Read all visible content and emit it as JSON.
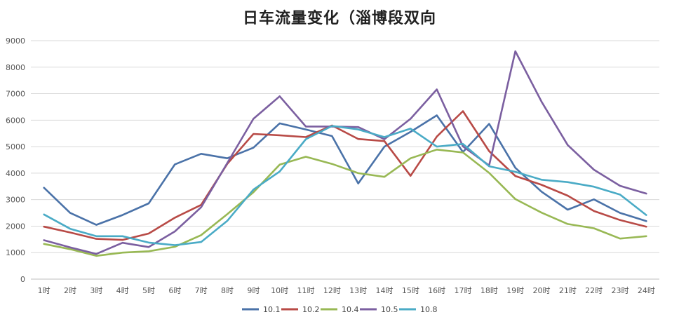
{
  "chart_data": {
    "type": "line",
    "title": "日车流量变化（淄博段双向",
    "categories": [
      "1时",
      "2时",
      "3时",
      "4时",
      "5时",
      "6时",
      "7时",
      "8时",
      "9时",
      "10时",
      "11时",
      "12时",
      "13时",
      "14时",
      "15时",
      "16时",
      "17时",
      "18时",
      "19时",
      "20时",
      "21时",
      "22时",
      "23时",
      "24时"
    ],
    "ylim": [
      0,
      9000
    ],
    "yticks": [
      0,
      1000,
      2000,
      3000,
      4000,
      5000,
      6000,
      7000,
      8000,
      9000
    ],
    "grid": true,
    "legend": "bottom",
    "series": [
      {
        "name": "10.1",
        "color": "#4a72a8",
        "values": [
          3450,
          2500,
          2050,
          2420,
          2860,
          4330,
          4730,
          4560,
          4960,
          5880,
          5650,
          5400,
          3610,
          5000,
          5560,
          6180,
          4800,
          5860,
          4200,
          3300,
          2620,
          3010,
          2500,
          2190
        ]
      },
      {
        "name": "10.2",
        "color": "#b84a46",
        "values": [
          1980,
          1760,
          1520,
          1480,
          1720,
          2320,
          2800,
          4350,
          5480,
          5430,
          5360,
          5800,
          5290,
          5210,
          3900,
          5380,
          6340,
          4830,
          3890,
          3560,
          3150,
          2570,
          2230,
          1980
        ]
      },
      {
        "name": "10.4",
        "color": "#98b854",
        "values": [
          1330,
          1130,
          880,
          1000,
          1050,
          1220,
          1660,
          2450,
          3280,
          4320,
          4620,
          4350,
          4000,
          3860,
          4560,
          4890,
          4780,
          4010,
          3020,
          2510,
          2080,
          1920,
          1530,
          1620
        ]
      },
      {
        "name": "10.5",
        "color": "#7b5fa0",
        "values": [
          1470,
          1200,
          950,
          1370,
          1210,
          1800,
          2710,
          4380,
          6050,
          6900,
          5760,
          5760,
          5740,
          5280,
          6050,
          7160,
          5010,
          4290,
          8600,
          6700,
          5060,
          4130,
          3520,
          3230
        ]
      },
      {
        "name": "10.8",
        "color": "#4aabc6",
        "values": [
          2440,
          1900,
          1620,
          1620,
          1380,
          1280,
          1400,
          2200,
          3380,
          4060,
          5280,
          5780,
          5650,
          5360,
          5680,
          5000,
          5100,
          4260,
          4050,
          3750,
          3660,
          3490,
          3190,
          2420
        ]
      }
    ]
  }
}
